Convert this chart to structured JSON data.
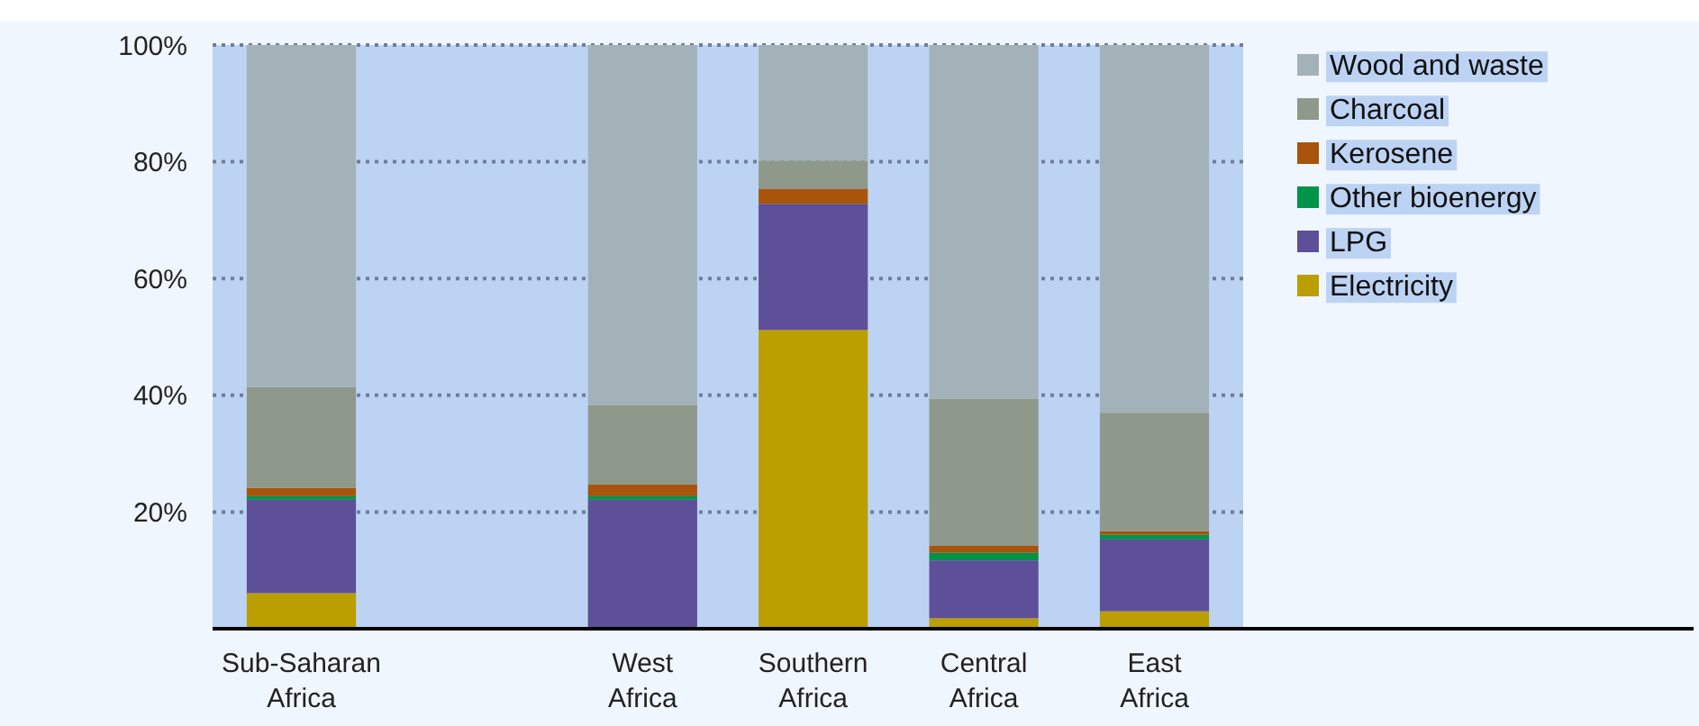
{
  "chart_data": {
    "type": "bar",
    "stacked": true,
    "categories": [
      "Sub-Saharan Africa",
      null,
      "West Africa",
      "Southern Africa",
      "Central Africa",
      "East Africa"
    ],
    "series": [
      {
        "name": "Electricity",
        "color": "#bb9e00",
        "values": [
          6.1,
          null,
          null,
          51.2,
          1.8,
          3.0
        ]
      },
      {
        "name": "LPG",
        "color": "#5d4f98",
        "values": [
          16.0,
          null,
          22.1,
          21.6,
          9.9,
          12.3
        ]
      },
      {
        "name": "Other bioenergy",
        "color": "#00934a",
        "values": [
          0.6,
          null,
          0.6,
          0,
          1.3,
          0.8
        ]
      },
      {
        "name": "Kerosene",
        "color": "#a8540c",
        "values": [
          1.4,
          null,
          2.0,
          2.6,
          1.2,
          0.6
        ]
      },
      {
        "name": "Charcoal",
        "color": "#8f998b",
        "values": [
          17.3,
          null,
          13.6,
          4.8,
          25.2,
          20.3
        ]
      },
      {
        "name": "Wood and waste",
        "color": "#a3b2b9",
        "values": [
          58.6,
          null,
          61.7,
          19.8,
          60.6,
          63.0
        ]
      }
    ],
    "ylim": [
      0,
      100
    ],
    "yticks": [
      {
        "value": 20,
        "label": "20%"
      },
      {
        "value": 40,
        "label": "40%"
      },
      {
        "value": 60,
        "label": "60%"
      },
      {
        "value": 80,
        "label": "80%"
      },
      {
        "value": 100,
        "label": "100%"
      }
    ],
    "grid": "y",
    "legend": "right"
  }
}
